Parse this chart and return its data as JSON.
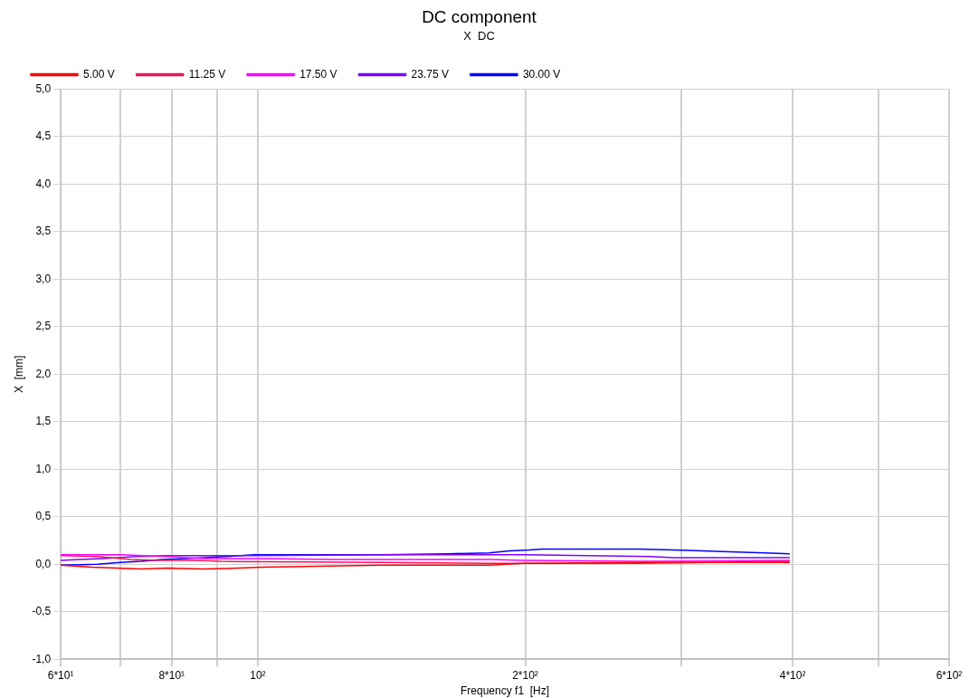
{
  "chart_data": {
    "type": "line",
    "title": "DC component",
    "subtitle": "X  DC",
    "xlabel": "Frequency f1  [Hz]",
    "ylabel": "X  [mm]",
    "log": "x",
    "grid": true,
    "legend": "top",
    "marker": "none",
    "line_style": "solid",
    "xlim": [
      60,
      600
    ],
    "xticks": [
      {
        "value": 60,
        "label": "6*10¹"
      },
      {
        "value": 70,
        "label": null
      },
      {
        "value": 80,
        "label": "8*10¹"
      },
      {
        "value": 90,
        "label": null
      },
      {
        "value": 100,
        "label": "10²"
      },
      {
        "value": 200,
        "label": "2*10²"
      },
      {
        "value": 300,
        "label": null
      },
      {
        "value": 400,
        "label": "4*10²"
      },
      {
        "value": 500,
        "label": null
      },
      {
        "value": 600,
        "label": "6*10²"
      }
    ],
    "ylim": [
      -1,
      5
    ],
    "yticks": [
      {
        "value": -1,
        "label": "-1,0"
      },
      {
        "value": -0.5,
        "label": "-0,5"
      },
      {
        "value": 0,
        "label": "0,0"
      },
      {
        "value": 0.5,
        "label": "0,5"
      },
      {
        "value": 1,
        "label": "1,0"
      },
      {
        "value": 1.5,
        "label": "1,5"
      },
      {
        "value": 2,
        "label": "2,0"
      },
      {
        "value": 2.5,
        "label": "2,5"
      },
      {
        "value": 3,
        "label": "3,0"
      },
      {
        "value": 3.5,
        "label": "3,5"
      },
      {
        "value": 4,
        "label": "4,0"
      },
      {
        "value": 4.5,
        "label": "4,5"
      },
      {
        "value": 5,
        "label": "5,0"
      }
    ],
    "series": [
      {
        "name": "5.00 V",
        "color": "#ff0000",
        "x": [
          60,
          65,
          74,
          79,
          87,
          95,
          101,
          138,
          182,
          199,
          268,
          397
        ],
        "values": [
          -0.01,
          -0.03,
          -0.05,
          -0.04,
          -0.05,
          -0.04,
          -0.03,
          -0.01,
          -0.01,
          0.01,
          0.02,
          0.02
        ]
      },
      {
        "name": "11.25 V",
        "color": "#f0145a",
        "x": [
          60,
          66,
          72,
          77,
          85,
          91,
          138,
          182,
          200,
          269,
          397
        ],
        "values": [
          0.09,
          0.08,
          0.05,
          0.04,
          0.04,
          0.03,
          0.02,
          0.01,
          0.01,
          0.01,
          0.03
        ]
      },
      {
        "name": "17.50 V",
        "color": "#ff00ff",
        "x": [
          60,
          70,
          79,
          87,
          101,
          122,
          138,
          182,
          200,
          269,
          397
        ],
        "values": [
          0.1,
          0.1,
          0.08,
          0.06,
          0.06,
          0.05,
          0.05,
          0.05,
          0.04,
          0.03,
          0.04
        ]
      },
      {
        "name": "23.75 V",
        "color": "#8000ff",
        "x": [
          60,
          63,
          67,
          73,
          79,
          99,
          138,
          200,
          277,
          294,
          317,
          397
        ],
        "values": [
          0.04,
          0.05,
          0.06,
          0.08,
          0.09,
          0.09,
          0.1,
          0.1,
          0.08,
          0.07,
          0.07,
          0.07
        ]
      },
      {
        "name": "30.00 V",
        "color": "#0000ff",
        "x": [
          60,
          66,
          70,
          74,
          78,
          83,
          92,
          99,
          110,
          138,
          164,
          182,
          192,
          202,
          209,
          269,
          294,
          317,
          340,
          373,
          397
        ],
        "values": [
          -0.01,
          0,
          0.02,
          0.03,
          0.05,
          0.06,
          0.08,
          0.1,
          0.1,
          0.1,
          0.11,
          0.12,
          0.14,
          0.15,
          0.16,
          0.16,
          0.15,
          0.14,
          0.13,
          0.12,
          0.11
        ]
      }
    ]
  }
}
